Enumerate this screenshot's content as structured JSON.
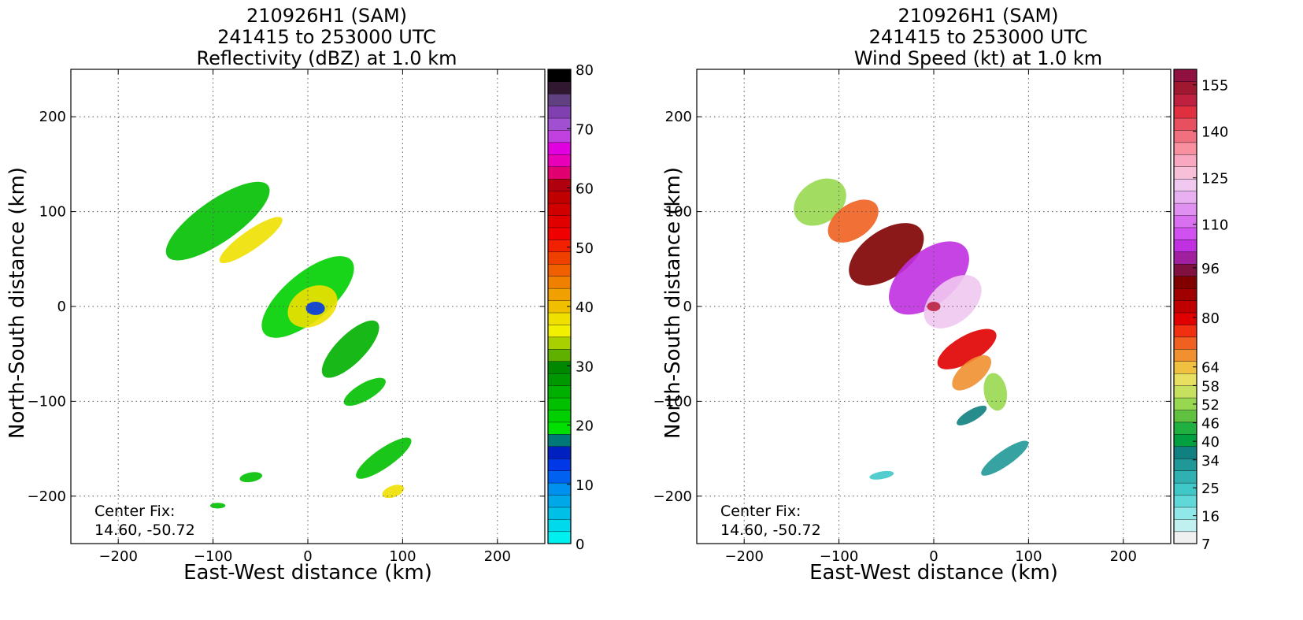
{
  "chart_data": [
    {
      "type": "heatmap",
      "title_lines": [
        "210926H1 (SAM)",
        "241415 to 253000 UTC",
        "Reflectivity (dBZ) at 1.0 km"
      ],
      "xlabel": "East-West distance (km)",
      "ylabel": "North-South distance (km)",
      "xlim": [
        -250,
        250
      ],
      "ylim": [
        -250,
        250
      ],
      "xticks": [
        -200,
        -100,
        0,
        100,
        200
      ],
      "yticks": [
        -200,
        -100,
        0,
        100,
        200
      ],
      "grid": true,
      "center_fix_label": "Center Fix:",
      "center_fix_value": "14.60, -50.72",
      "colorbar": {
        "min": 0,
        "max": 80,
        "tick_values": [
          0,
          10,
          20,
          30,
          40,
          50,
          60,
          70,
          80
        ],
        "tick_labels": [
          "0",
          "10",
          "20",
          "30",
          "40",
          "50",
          "60",
          "70",
          "80"
        ],
        "colors": [
          "#00f0f0",
          "#00d8ec",
          "#00c0e8",
          "#00a8e8",
          "#0090f0",
          "#0060f0",
          "#0038e8",
          "#0020c0",
          "#007878",
          "#00e000",
          "#00d000",
          "#00c000",
          "#00b000",
          "#009800",
          "#008800",
          "#60b000",
          "#a8d000",
          "#f0f000",
          "#f0e000",
          "#f0c000",
          "#f0a000",
          "#f08000",
          "#f06000",
          "#f04000",
          "#f02000",
          "#f00000",
          "#e00000",
          "#d00000",
          "#c00000",
          "#b00010",
          "#e00070",
          "#e800b8",
          "#e000e0",
          "#c040e0",
          "#a050d0",
          "#8040b0",
          "#604080",
          "#301830",
          "#000000"
        ]
      },
      "regions": [
        {
          "name": "northwest-rainband",
          "x": -95,
          "y": 90,
          "rx": 65,
          "ry": 22,
          "angle": -35,
          "color": "#00c000"
        },
        {
          "name": "northwest-yellow-band",
          "x": -60,
          "y": 70,
          "rx": 40,
          "ry": 10,
          "angle": -35,
          "color": "#f0e000"
        },
        {
          "name": "inner-core-band",
          "x": 0,
          "y": 10,
          "rx": 60,
          "ry": 25,
          "angle": -40,
          "color": "#00d000"
        },
        {
          "name": "eyewall",
          "x": 5,
          "y": 0,
          "rx": 28,
          "ry": 20,
          "angle": -30,
          "color": "#f0e000"
        },
        {
          "name": "eye",
          "x": 8,
          "y": -2,
          "rx": 10,
          "ry": 7,
          "angle": 0,
          "color": "#0038e8"
        },
        {
          "name": "southeast-band",
          "x": 45,
          "y": -45,
          "rx": 40,
          "ry": 15,
          "angle": -45,
          "color": "#00b000"
        },
        {
          "name": "southern-cell-a",
          "x": 60,
          "y": -90,
          "rx": 25,
          "ry": 9,
          "angle": -30,
          "color": "#00c000"
        },
        {
          "name": "southern-cell-b",
          "x": 80,
          "y": -160,
          "rx": 35,
          "ry": 10,
          "angle": -35,
          "color": "#00c000"
        },
        {
          "name": "southern-cell-c",
          "x": 90,
          "y": -195,
          "rx": 12,
          "ry": 6,
          "angle": -20,
          "color": "#f0e000"
        },
        {
          "name": "southwest-cell",
          "x": -60,
          "y": -180,
          "rx": 12,
          "ry": 5,
          "angle": -10,
          "color": "#00c000"
        },
        {
          "name": "far-south-cell",
          "x": -95,
          "y": -210,
          "rx": 8,
          "ry": 3,
          "angle": 0,
          "color": "#00c000"
        }
      ]
    },
    {
      "type": "heatmap",
      "title_lines": [
        "210926H1 (SAM)",
        "241415 to 253000 UTC",
        "Wind Speed (kt) at 1.0 km"
      ],
      "xlabel": "East-West distance (km)",
      "ylabel": "North-South distance (km)",
      "xlim": [
        -250,
        250
      ],
      "ylim": [
        -250,
        250
      ],
      "xticks": [
        -200,
        -100,
        0,
        100,
        200
      ],
      "yticks": [
        -200,
        -100,
        0,
        100,
        200
      ],
      "grid": true,
      "center_fix_label": "Center Fix:",
      "center_fix_value": "14.60, -50.72",
      "colorbar": {
        "min": 7,
        "max": 160,
        "tick_values": [
          7,
          16,
          25,
          34,
          40,
          46,
          52,
          58,
          64,
          80,
          96,
          110,
          125,
          140,
          155
        ],
        "tick_labels": [
          "7",
          "16",
          "25",
          "34",
          "40",
          "46",
          "52",
          "58",
          "64",
          "80",
          "96",
          "110",
          "125",
          "140",
          "155"
        ],
        "colors": [
          "#f0f0f0",
          "#c0f0f0",
          "#90e8e8",
          "#60d8d8",
          "#40c8c8",
          "#30b0b0",
          "#209898",
          "#108080",
          "#00a040",
          "#20b040",
          "#60c040",
          "#98d850",
          "#c8e060",
          "#e8e060",
          "#f0c040",
          "#f09030",
          "#f06020",
          "#f03010",
          "#e00000",
          "#c00000",
          "#a00000",
          "#800000",
          "#801040",
          "#a020a0",
          "#c030e0",
          "#d050f0",
          "#d870f0",
          "#e090f0",
          "#e8b0f0",
          "#f0c8f0",
          "#f8c0d8",
          "#f8a8c0",
          "#f890a0",
          "#f07080",
          "#e85060",
          "#e03040",
          "#c02040",
          "#a01830",
          "#901040"
        ]
      },
      "regions": [
        {
          "name": "northwest-light-winds",
          "x": -120,
          "y": 110,
          "rx": 30,
          "ry": 22,
          "angle": -35,
          "color": "#98d850"
        },
        {
          "name": "northwest-orange-winds",
          "x": -85,
          "y": 90,
          "rx": 30,
          "ry": 18,
          "angle": -35,
          "color": "#f06020"
        },
        {
          "name": "north-dark-red-winds",
          "x": -50,
          "y": 55,
          "rx": 45,
          "ry": 25,
          "angle": -35,
          "color": "#800000"
        },
        {
          "name": "core-purple-winds",
          "x": -5,
          "y": 30,
          "rx": 50,
          "ry": 28,
          "angle": -40,
          "color": "#c030e0"
        },
        {
          "name": "core-pink-winds",
          "x": 20,
          "y": 5,
          "rx": 35,
          "ry": 22,
          "angle": -40,
          "color": "#f0c8f0"
        },
        {
          "name": "eye-center",
          "x": 0,
          "y": 0,
          "rx": 7,
          "ry": 5,
          "angle": 0,
          "color": "#c02040"
        },
        {
          "name": "south-red-winds",
          "x": 35,
          "y": -45,
          "rx": 35,
          "ry": 14,
          "angle": -30,
          "color": "#e00000"
        },
        {
          "name": "south-orange-winds",
          "x": 40,
          "y": -70,
          "rx": 25,
          "ry": 12,
          "angle": -40,
          "color": "#f09030"
        },
        {
          "name": "southeast-light-winds",
          "x": 65,
          "y": -90,
          "rx": 12,
          "ry": 20,
          "angle": -10,
          "color": "#98d850"
        },
        {
          "name": "south-teal-cell-a",
          "x": 40,
          "y": -115,
          "rx": 18,
          "ry": 6,
          "angle": -30,
          "color": "#108080"
        },
        {
          "name": "south-teal-cell-b",
          "x": 75,
          "y": -160,
          "rx": 30,
          "ry": 8,
          "angle": -35,
          "color": "#209898"
        },
        {
          "name": "southwest-teal-cell",
          "x": -55,
          "y": -178,
          "rx": 13,
          "ry": 4,
          "angle": -10,
          "color": "#40c8c8"
        }
      ]
    }
  ]
}
